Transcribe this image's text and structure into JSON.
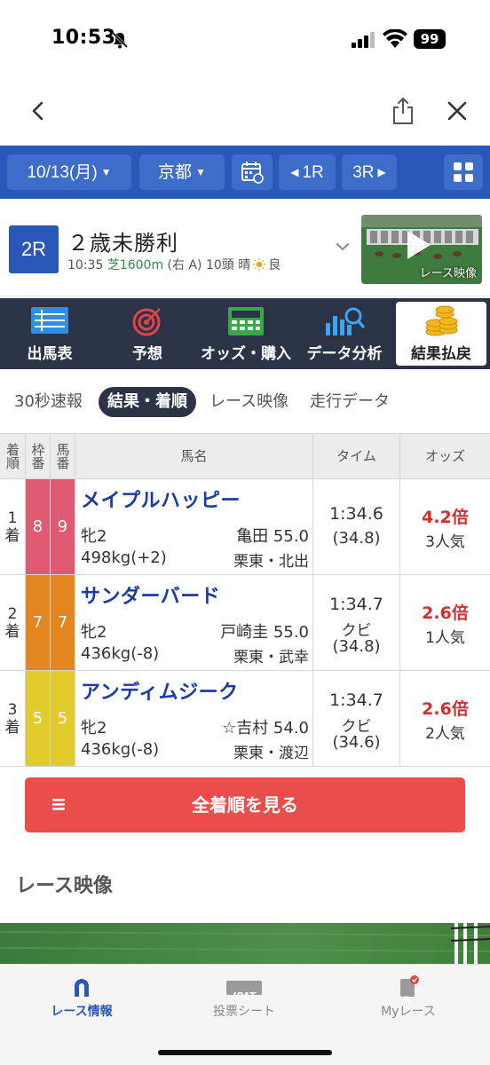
{
  "status_bar": {
    "time": "10:53",
    "battery": "99"
  },
  "toolbar": {
    "date": "10/13(月)",
    "venue": "京都",
    "prev_race": "1R",
    "next_race": "3R"
  },
  "race": {
    "number": "2R",
    "title": "２歳未勝利",
    "start_time": "10:35",
    "course": "芝1600m",
    "direction": "(右 A)",
    "runners": "10頭",
    "weather": "晴",
    "going": "良",
    "video_thumb_label": "レース映像"
  },
  "section_nav": [
    "出馬表",
    "予想",
    "オッズ・購入",
    "データ分析",
    "結果払戻"
  ],
  "subtabs": [
    "30秒速報",
    "結果・着順",
    "レース映像",
    "走行データ"
  ],
  "table": {
    "headers": {
      "rank": "着順",
      "waku": "枠番",
      "uma": "馬番",
      "name": "馬名",
      "time": "タイム",
      "odds": "オッズ"
    },
    "rows": [
      {
        "rank": "1",
        "rank_suffix": "着",
        "waku": "8",
        "uma": "9",
        "waku_color": "#e05a74",
        "horse": "メイプルハッピー",
        "sex_age": "牝2",
        "jockey": "亀田 55.0",
        "weight": "498kg(+2)",
        "trainer": "栗東・北出",
        "time": "1:34.6",
        "margin": "",
        "last3f": "(34.8)",
        "odds": "4.2倍",
        "popularity": "3人気"
      },
      {
        "rank": "2",
        "rank_suffix": "着",
        "waku": "7",
        "uma": "7",
        "waku_color": "#e4861e",
        "horse": "サンダーバード",
        "sex_age": "牝2",
        "jockey": "戸崎圭 55.0",
        "weight": "436kg(-8)",
        "trainer": "栗東・武幸",
        "time": "1:34.7",
        "margin": "クビ",
        "last3f": "(34.8)",
        "odds": "2.6倍",
        "popularity": "1人気"
      },
      {
        "rank": "3",
        "rank_suffix": "着",
        "waku": "5",
        "uma": "5",
        "waku_color": "#e2cc2c",
        "horse": "アンディムジーク",
        "sex_age": "牝2",
        "jockey": "☆吉村 54.0",
        "weight": "436kg(-8)",
        "trainer": "栗東・渡辺",
        "time": "1:34.7",
        "margin": "クビ",
        "last3f": "(34.6)",
        "odds": "2.6倍",
        "popularity": "2人気"
      }
    ]
  },
  "all_results_button": "全着順を見る",
  "video_section_title": "レース映像",
  "tabbar": {
    "tabs": [
      "レース情報",
      "投票シート",
      "Myレース"
    ],
    "ipat_badge": "IPAT",
    "my_badge": "R"
  },
  "colors": {
    "primary": "#2a58b8",
    "nav_dark": "#2b3347",
    "accent_red": "#eb4d4b",
    "odds_red": "#d32f2f"
  }
}
